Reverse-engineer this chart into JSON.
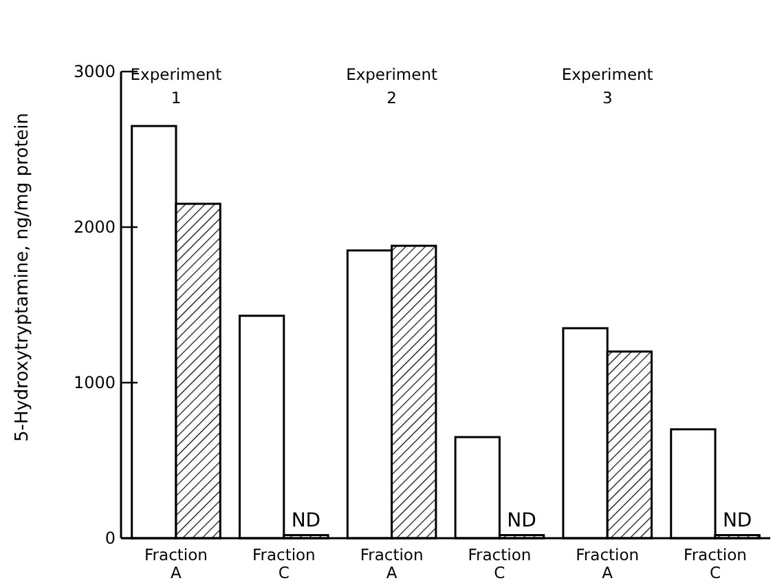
{
  "chart_data": {
    "type": "bar",
    "ylabel": "5-Hydroxytryptamine,   ng/mg protein",
    "categories": [
      "Fraction A",
      "Fraction C",
      "Fraction A",
      "Fraction C",
      "Fraction A",
      "Fraction C"
    ],
    "series": [
      {
        "color": "#ffffff",
        "values": [
          2650,
          1430,
          1850,
          650,
          1350,
          700
        ]
      },
      {
        "color": "#000000",
        "values": [
          2150,
          20,
          1880,
          20,
          1200,
          20
        ],
        "value_labels": [
          null,
          "ND",
          null,
          "ND",
          null,
          "ND"
        ]
      }
    ],
    "ylim": [
      0,
      3000
    ],
    "yticks": [
      0,
      1000,
      2000,
      3000
    ],
    "annotations": [
      "Experiment 1",
      "Experiment 2",
      "Experiment 3"
    ]
  }
}
